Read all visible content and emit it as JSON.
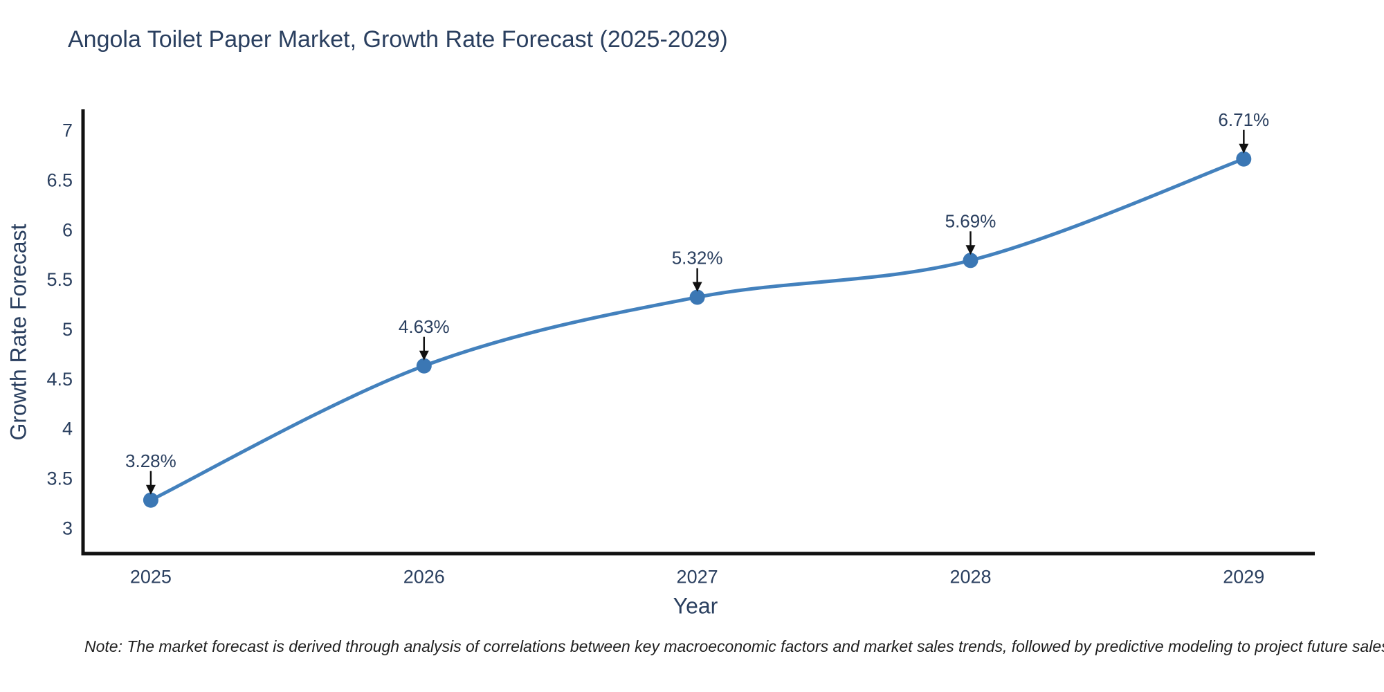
{
  "title": "Angola Toilet Paper Market, Growth Rate Forecast (2025-2029)",
  "note": "Note: The market forecast is derived through analysis of correlations between key macroeconomic factors and market sales trends, followed by predictive modeling to project future sales",
  "chart_data": {
    "type": "line",
    "title": "Angola Toilet Paper Market, Growth Rate Forecast (2025-2029)",
    "xlabel": "Year",
    "ylabel": "Growth Rate Forecast",
    "categories": [
      2025,
      2026,
      2027,
      2028,
      2029
    ],
    "x_tick_labels": [
      "2025",
      "2026",
      "2027",
      "2028",
      "2029"
    ],
    "values": [
      3.28,
      4.63,
      5.32,
      5.69,
      6.71
    ],
    "point_labels": [
      "3.28%",
      "4.63%",
      "5.32%",
      "5.69%",
      "6.71%"
    ],
    "yticks": [
      3,
      3.5,
      4,
      4.5,
      5,
      5.5,
      6,
      6.5,
      7
    ],
    "ytick_labels": [
      "3",
      "3.5",
      "4",
      "4.5",
      "5",
      "5.5",
      "6",
      "6.5",
      "7"
    ],
    "xlim": [
      2024.752,
      2029.26
    ],
    "ylim": [
      2.742,
      7.209
    ],
    "grid": false,
    "legend": "none",
    "curve": "spline",
    "colors": {
      "line": "#4381bd",
      "marker": "#3b77b4",
      "arrow": "#111111",
      "axis_line": "#111111",
      "tick_text": "#2a3f5f",
      "annotation_text": "#2a3f5f",
      "title_text": "#2a3f5f",
      "note_text": "#1f1f1f"
    }
  }
}
